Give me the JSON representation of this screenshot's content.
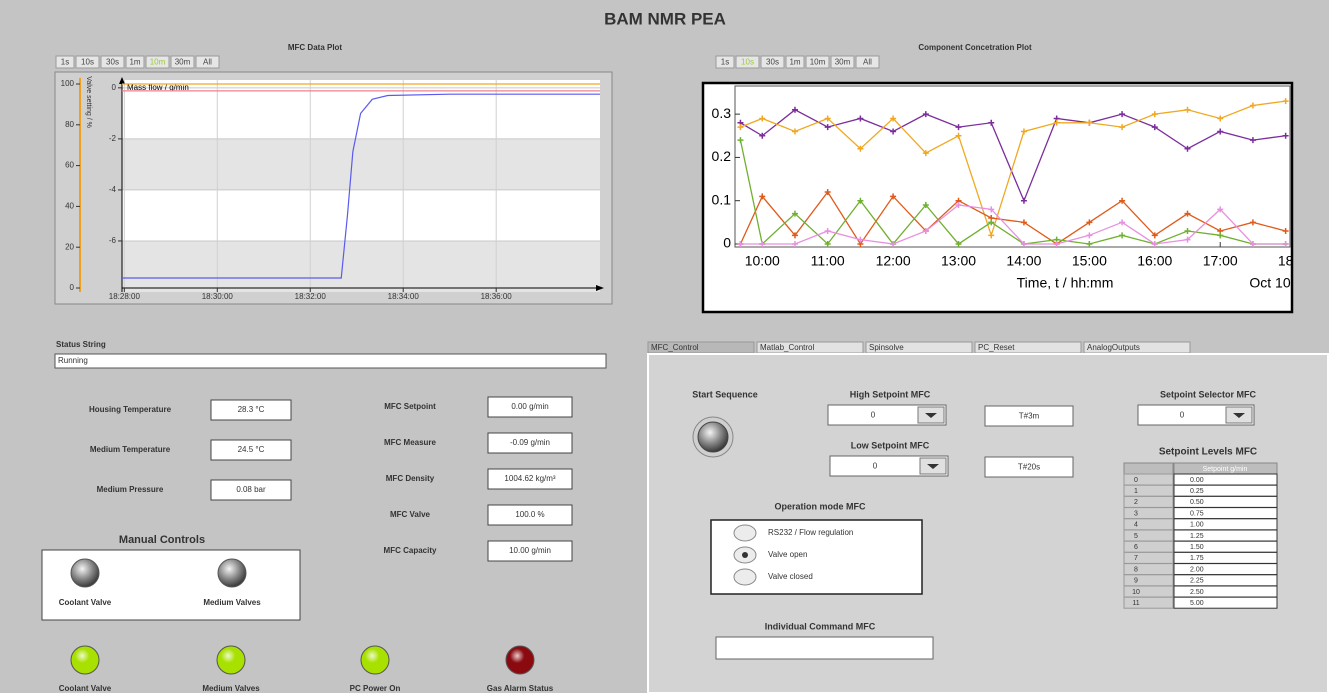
{
  "header": {
    "title": "BAM NMR PEA"
  },
  "mfc_plot": {
    "type": "line",
    "title": "MFC Data Plot",
    "range_buttons": [
      "1s",
      "10s",
      "30s",
      "1m",
      "10m",
      "30m",
      "All"
    ],
    "active_range": 4,
    "x": [
      "18:27:57",
      "18:32:40",
      "18:32:48",
      "18:32:55",
      "18:33:05",
      "18:33:20",
      "18:33:40",
      "18:35:00",
      "18:38:14"
    ],
    "xlim": [
      "18:27:57",
      "18:38:14"
    ],
    "xticks": [
      "18:28:00",
      "18:30:00",
      "18:32:00",
      "18:34:00",
      "18:36:00"
    ],
    "ylim": [
      -8,
      0.15
    ],
    "yticks": [
      0,
      -2,
      -4,
      -6
    ],
    "y2lim": [
      0,
      100
    ],
    "y2ticks": [
      0,
      20,
      40,
      60,
      80,
      100
    ],
    "y2_label": "Valve setting / %",
    "y2_color": "#f0a020",
    "grid": true,
    "series": [
      {
        "name": "Mass flow / g/min",
        "color": "#5a5af0",
        "values": [
          -7.45,
          -7.45,
          -5,
          -2.5,
          -1.0,
          -0.45,
          -0.3,
          -0.25,
          -0.25
        ]
      },
      {
        "color": "#f5a623",
        "axis": "y2",
        "values": [
          100,
          100,
          100,
          100,
          100,
          100,
          100,
          100,
          100
        ]
      },
      {
        "color": "#f08090",
        "values": [
          -0.12,
          -0.12,
          -0.12,
          -0.12,
          -0.12,
          -0.12,
          -0.12,
          -0.12,
          -0.12
        ]
      }
    ]
  },
  "conc_plot": {
    "type": "scatter",
    "title": "Component Concetration Plot",
    "range_buttons": [
      "1s",
      "10s",
      "30s",
      "1m",
      "10m",
      "30m",
      "All"
    ],
    "active_range": 1,
    "x": [
      "09:40",
      "10:00",
      "10:30",
      "11:00",
      "11:30",
      "12:00",
      "12:30",
      "13:00",
      "13:30",
      "14:00",
      "14:30",
      "15:00",
      "15:30",
      "16:00",
      "16:30",
      "17:00",
      "17:30",
      "18:00"
    ],
    "xlim": [
      "09:35",
      "18:04"
    ],
    "xticks": [
      "10:00",
      "11:00",
      "12:00",
      "13:00",
      "14:00",
      "15:00",
      "16:00",
      "17:00",
      {
        "value": "18:00",
        "label": "18"
      }
    ],
    "ylim": [
      -0.007,
      0.365
    ],
    "yticks": [
      0,
      0.1,
      0.2,
      0.3
    ],
    "xlabel": "Time, t / hh:mm",
    "date_label": "Oct 10",
    "series": [
      {
        "color": "#7b2d9c",
        "values": [
          0.28,
          0.25,
          0.31,
          0.27,
          0.29,
          0.26,
          0.3,
          0.27,
          0.28,
          0.1,
          0.29,
          0.28,
          0.3,
          0.27,
          0.22,
          0.26,
          0.24,
          0.25
        ]
      },
      {
        "color": "#f0a820",
        "values": [
          0.27,
          0.29,
          0.26,
          0.29,
          0.22,
          0.29,
          0.21,
          0.25,
          0.02,
          0.26,
          0.28,
          0.28,
          0.27,
          0.3,
          0.31,
          0.29,
          0.32,
          0.33
        ]
      },
      {
        "color": "#e05a1a",
        "values": [
          0.0,
          0.11,
          0.02,
          0.12,
          0.0,
          0.11,
          0.03,
          0.1,
          0.06,
          0.05,
          0.0,
          0.05,
          0.1,
          0.02,
          0.07,
          0.03,
          0.05,
          0.03
        ]
      },
      {
        "color": "#70b030",
        "values": [
          0.24,
          0.0,
          0.07,
          0.0,
          0.1,
          0.0,
          0.09,
          0.0,
          0.05,
          0.0,
          0.01,
          0.0,
          0.02,
          0.0,
          0.03,
          0.02,
          0.0,
          0.0
        ]
      },
      {
        "color": "#e890e0",
        "values": [
          0.0,
          0.0,
          0.0,
          0.03,
          0.01,
          0.0,
          0.03,
          0.09,
          0.08,
          0.0,
          0.0,
          0.02,
          0.05,
          0.0,
          0.01,
          0.08,
          0.0,
          0.0
        ]
      }
    ]
  },
  "status": {
    "label": "Status String",
    "value": "Running"
  },
  "readouts": [
    {
      "label": "Housing Temperature",
      "value": "28.3 °C"
    },
    {
      "label": "Medium Temperature",
      "value": "24.5 °C"
    },
    {
      "label": "Medium Pressure",
      "value": "0.08 bar"
    }
  ],
  "mfc_readouts": [
    {
      "label": "MFC Setpoint",
      "value": "0.00 g/min"
    },
    {
      "label": "MFC Measure",
      "value": "-0.09 g/min"
    },
    {
      "label": "MFC Density",
      "value": "1004.62 kg/m³"
    },
    {
      "label": "MFC Valve",
      "value": "100.0 %"
    },
    {
      "label": "MFC Capacity",
      "value": "10.00 g/min"
    }
  ],
  "manual_controls": {
    "title": "Manual Controls",
    "buttons": [
      "Coolant Valve",
      "Medium Valves"
    ]
  },
  "indicators": [
    {
      "label": "Coolant Valve",
      "color": "#a8e000"
    },
    {
      "label": "Medium Valves",
      "color": "#a8e000"
    },
    {
      "label": "PC Power On",
      "color": "#a8e000"
    },
    {
      "label": "Gas Alarm Status",
      "color": "#8a0a10"
    }
  ],
  "tabs": [
    "MFC_Control",
    "Matlab_Control",
    "Spinsolve",
    "PC_Reset",
    "AnalogOutputs"
  ],
  "control": {
    "start": "Start Sequence",
    "high": {
      "label": "High Setpoint MFC",
      "value": "0",
      "timer": "T#3m"
    },
    "low": {
      "label": "Low Setpoint MFC",
      "value": "0",
      "timer": "T#20s"
    },
    "selector": {
      "label": "Setpoint Selector MFC",
      "value": "0"
    },
    "mode": {
      "title": "Operation mode MFC",
      "options": [
        "RS232 / Flow regulation",
        "Valve open",
        "Valve closed"
      ],
      "selected": 1
    },
    "command": {
      "label": "Individual Command MFC"
    },
    "levels": {
      "title": "Setpoint Levels MFC",
      "header": "Setpoint g/min",
      "rows": [
        [
          "0",
          "0.00"
        ],
        [
          "1",
          "0.25"
        ],
        [
          "2",
          "0.50"
        ],
        [
          "3",
          "0.75"
        ],
        [
          "4",
          "1.00"
        ],
        [
          "5",
          "1.25"
        ],
        [
          "6",
          "1.50"
        ],
        [
          "7",
          "1.75"
        ],
        [
          "8",
          "2.00"
        ],
        [
          "9",
          "2.25"
        ],
        [
          "10",
          "2.50"
        ],
        [
          "11",
          "5.00"
        ]
      ]
    }
  }
}
